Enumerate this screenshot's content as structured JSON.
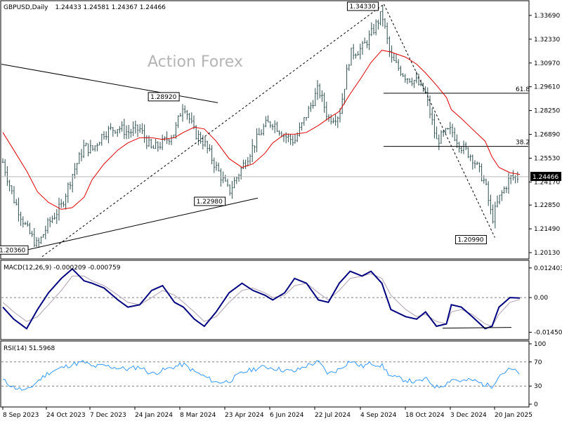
{
  "header": {
    "symbol": "GBPUSD,Daily",
    "ohlc": "1.24433 1.24581 1.24367 1.24466"
  },
  "watermark": "Action Forex",
  "colors": {
    "price_bars": "#2f4f4f",
    "sma": "#e00000",
    "macd_main": "#000080",
    "macd_signal": "#b0a0b0",
    "rsi": "#3399ff",
    "grid": "#b8b8b8",
    "trendline": "#000000"
  },
  "chart_data": [
    {
      "type": "line",
      "panel": "price",
      "title": "GBPUSD,Daily",
      "y_ticks": [
        "1.33690",
        "1.32330",
        "1.30970",
        "1.29610",
        "1.28250",
        "1.26890",
        "1.25530",
        "1.24170",
        "1.22850",
        "1.21490",
        "1.20130"
      ],
      "current_price": "1.24466",
      "ylim": [
        1.1985,
        1.3445
      ],
      "x": [
        "2023-09-08",
        "2023-09-19",
        "2023-10-02",
        "2023-10-13",
        "2023-10-24",
        "2023-11-06",
        "2023-11-17",
        "2023-11-29",
        "2023-12-07",
        "2023-12-19",
        "2024-01-02",
        "2024-01-12",
        "2024-01-24",
        "2024-02-05",
        "2024-02-16",
        "2024-02-28",
        "2024-03-08",
        "2024-03-19",
        "2024-03-29",
        "2024-04-10",
        "2024-04-23",
        "2024-05-06",
        "2024-05-17",
        "2024-05-29",
        "2024-06-06",
        "2024-06-18",
        "2024-06-28",
        "2024-07-10",
        "2024-07-22",
        "2024-08-01",
        "2024-08-12",
        "2024-08-23",
        "2024-09-04",
        "2024-09-13",
        "2024-09-24",
        "2024-10-03",
        "2024-10-18",
        "2024-10-29",
        "2024-11-07",
        "2024-11-18",
        "2024-11-28",
        "2024-12-03",
        "2024-12-13",
        "2024-12-24",
        "2025-01-06",
        "2025-01-13",
        "2025-01-20",
        "2025-01-31",
        "2025-02-10"
      ],
      "series": [
        {
          "name": "",
          "values": [
            1.253,
            1.232,
            1.215,
            1.205,
            1.218,
            1.228,
            1.246,
            1.262,
            1.26,
            1.27,
            1.273,
            1.27,
            1.272,
            1.26,
            1.264,
            1.27,
            1.287,
            1.27,
            1.264,
            1.25,
            1.236,
            1.25,
            1.262,
            1.274,
            1.276,
            1.268,
            1.265,
            1.28,
            1.295,
            1.278,
            1.28,
            1.315,
            1.318,
            1.326,
            1.338,
            1.312,
            1.302,
            1.299,
            1.292,
            1.265,
            1.27,
            1.271,
            1.262,
            1.256,
            1.241,
            1.22,
            1.232,
            1.244,
            1.2447
          ]
        },
        {
          "name": "",
          "values": [
            1.27,
            1.26,
            1.248,
            1.236,
            1.23,
            1.226,
            1.227,
            1.233,
            1.243,
            1.252,
            1.26,
            1.264,
            1.267,
            1.267,
            1.266,
            1.267,
            1.27,
            1.273,
            1.272,
            1.265,
            1.255,
            1.25,
            1.252,
            1.258,
            1.264,
            1.269,
            1.269,
            1.27,
            1.274,
            1.278,
            1.282,
            1.292,
            1.302,
            1.31,
            1.317,
            1.316,
            1.313,
            1.309,
            1.304,
            1.297,
            1.29,
            1.283,
            1.278,
            1.272,
            1.265,
            1.256,
            1.25,
            1.247,
            1.246
          ]
        }
      ],
      "annotations": [
        {
          "text": "1.20360",
          "x": "2023-10-03",
          "y": 1.2036
        },
        {
          "text": "1.28920",
          "x": "2024-03-08",
          "y": 1.2892
        },
        {
          "text": "1.22980",
          "x": "2024-04-22",
          "y": 1.2298
        },
        {
          "text": "1.34330",
          "x": "2024-09-26",
          "y": 1.3433
        },
        {
          "text": "1.20990",
          "x": "2025-01-13",
          "y": 1.2099
        }
      ],
      "fib_levels": [
        {
          "text": "61.8",
          "y": 1.2924
        },
        {
          "text": "38.2",
          "y": 1.262
        }
      ]
    },
    {
      "type": "line",
      "panel": "macd",
      "title": "MACD(12,26,9) -0.000209 -0.000759",
      "y_ticks": [
        "0.012403",
        "0.00",
        "-0.014502"
      ],
      "ylim": [
        -0.017,
        0.015
      ],
      "series": [
        {
          "name": "",
          "values": [
            -0.004,
            -0.009,
            -0.013,
            -0.005,
            0.002,
            0.008,
            0.012,
            0.007,
            0.006,
            0.004,
            -0.001,
            -0.004,
            -0.003,
            0.003,
            0.005,
            -0.002,
            -0.004,
            -0.009,
            -0.012,
            -0.006,
            0.002,
            0.006,
            0.003,
            0.001,
            -0.001,
            0.002,
            0.008,
            0.006,
            -0.001,
            -0.002,
            0.006,
            0.011,
            0.009,
            0.011,
            0.006,
            -0.005,
            -0.008,
            -0.009,
            -0.006,
            -0.012,
            -0.011,
            -0.003,
            -0.004,
            -0.008,
            -0.013,
            -0.012,
            -0.004,
            0.0,
            -0.0002
          ]
        },
        {
          "name": "",
          "values": [
            -0.002,
            -0.006,
            -0.01,
            -0.008,
            -0.003,
            0.003,
            0.009,
            0.009,
            0.007,
            0.005,
            0.001,
            -0.002,
            -0.003,
            0.0,
            0.003,
            0.001,
            -0.002,
            -0.006,
            -0.01,
            -0.008,
            -0.002,
            0.003,
            0.004,
            0.002,
            0.0,
            0.001,
            0.005,
            0.006,
            0.002,
            -0.001,
            0.003,
            0.008,
            0.009,
            0.01,
            0.008,
            0.001,
            -0.005,
            -0.008,
            -0.007,
            -0.01,
            -0.011,
            -0.006,
            -0.005,
            -0.007,
            -0.011,
            -0.012,
            -0.007,
            -0.002,
            -0.0008
          ]
        }
      ]
    },
    {
      "type": "line",
      "panel": "rsi",
      "title": "RSI(14) 51.5968",
      "y_ticks": [
        "100",
        "70",
        "30",
        "0"
      ],
      "ylim": [
        0,
        100
      ],
      "levels": [
        70,
        30
      ],
      "series": [
        {
          "name": "",
          "values": [
            40,
            28,
            22,
            38,
            52,
            60,
            66,
            70,
            62,
            64,
            60,
            58,
            62,
            50,
            56,
            62,
            66,
            54,
            46,
            36,
            38,
            52,
            58,
            62,
            60,
            56,
            54,
            64,
            70,
            50,
            58,
            72,
            62,
            68,
            64,
            46,
            40,
            36,
            42,
            28,
            34,
            42,
            38,
            40,
            32,
            30,
            48,
            58,
            51.6
          ]
        }
      ]
    }
  ],
  "x_axis": {
    "labels": [
      "8 Sep 2023",
      "24 Oct 2023",
      "7 Dec 2023",
      "24 Jan 2024",
      "8 Mar 2024",
      "23 Apr 2024",
      "6 Jun 2024",
      "22 Jul 2024",
      "4 Sep 2024",
      "18 Oct 2024",
      "3 Dec 2024",
      "20 Jan 2025"
    ]
  }
}
